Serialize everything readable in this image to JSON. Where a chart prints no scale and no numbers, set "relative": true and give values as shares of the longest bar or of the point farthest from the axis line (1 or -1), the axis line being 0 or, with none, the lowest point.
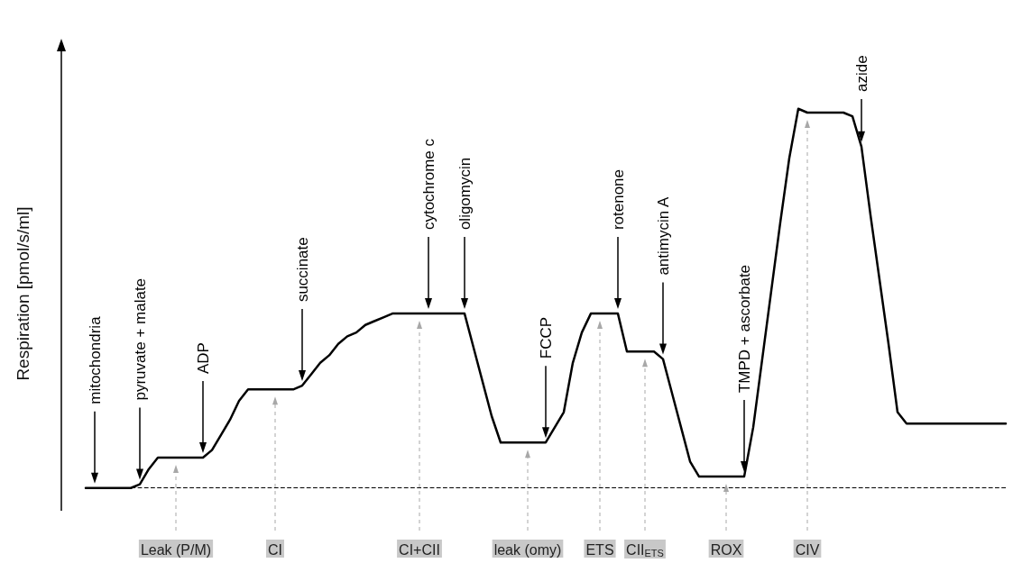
{
  "chart_data": {
    "type": "line",
    "relative": true,
    "ylabel": "Respiration [pmol/s/ml]",
    "categories": [
      null,
      null,
      null,
      null,
      null,
      null,
      null,
      null,
      null,
      null,
      "Leak (P/M)",
      null,
      null,
      null,
      null,
      null,
      null,
      null,
      null,
      null,
      null,
      "CI",
      null,
      null,
      null,
      null,
      null,
      null,
      null,
      null,
      null,
      null,
      null,
      null,
      null,
      null,
      null,
      "CI+CII",
      null,
      null,
      null,
      null,
      null,
      null,
      null,
      null,
      null,
      null,
      null,
      "leak (omy)",
      null,
      null,
      null,
      null,
      null,
      null,
      null,
      "ETS",
      null,
      null,
      null,
      null,
      "CII$_{ETS}$",
      null,
      null,
      null,
      null,
      null,
      null,
      null,
      null,
      "ROX",
      null,
      null,
      null,
      null,
      null,
      null,
      null,
      null,
      "CIV",
      null,
      null,
      null,
      null,
      null,
      null,
      null,
      null,
      null,
      null,
      null,
      null,
      null,
      null,
      null,
      null,
      null,
      null,
      null,
      null,
      null,
      null
    ],
    "series": [
      {
        "color": "#000000",
        "values": [
          0,
          0,
          0,
          0,
          0,
          0,
          0.01,
          0.05,
          0.08,
          0.08,
          0.08,
          0.08,
          0.08,
          0.08,
          0.1,
          0.14,
          0.18,
          0.23,
          0.26,
          0.26,
          0.26,
          0.26,
          0.26,
          0.26,
          0.27,
          0.3,
          0.33,
          0.35,
          0.38,
          0.4,
          0.41,
          0.43,
          0.44,
          0.45,
          0.46,
          0.46,
          0.46,
          0.46,
          0.46,
          0.46,
          0.46,
          0.46,
          0.46,
          0.37,
          0.28,
          0.19,
          0.12,
          0.12,
          0.12,
          0.12,
          0.12,
          0.12,
          0.16,
          0.2,
          0.33,
          0.41,
          0.46,
          0.46,
          0.46,
          0.46,
          0.36,
          0.36,
          0.36,
          0.36,
          0.34,
          0.25,
          0.16,
          0.07,
          0.03,
          0.03,
          0.03,
          0.03,
          0.03,
          0.03,
          0.16,
          0.34,
          0.52,
          0.7,
          0.87,
          1.0,
          0.99,
          0.99,
          0.99,
          0.99,
          0.99,
          0.98,
          0.9,
          0.72,
          0.55,
          0.38,
          0.2,
          0.17,
          0.17,
          0.17,
          0.17,
          0.17,
          0.17,
          0.17,
          0.17,
          0.17,
          0.17,
          0.17,
          0.17
        ]
      }
    ],
    "tick_labels": "x",
    "grid": "x",
    "marker": "none",
    "line_style": "solid",
    "ref_lines": [
      {
        "axis": "y",
        "value": 0,
        "color": "#000000",
        "line_style": "dashed"
      }
    ],
    "annotations": [
      "mitochondria",
      "pyruvate + malate",
      "ADP",
      "succinate",
      "cytochrome c",
      "oligomycin",
      "FCCP",
      "rotenone",
      "antimycin A",
      "TMPD + ascorbate",
      "azide"
    ]
  }
}
